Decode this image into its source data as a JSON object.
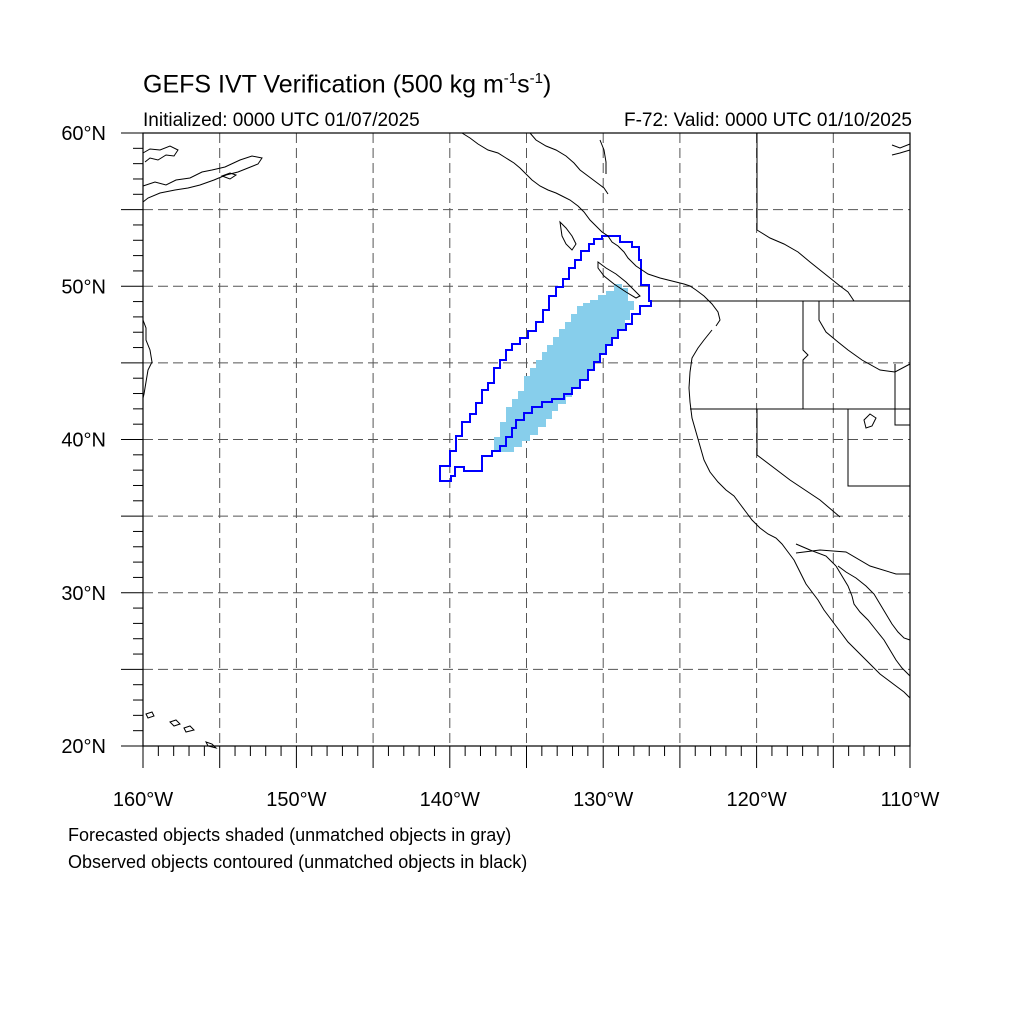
{
  "title": {
    "main": "GEFS IVT Verification (500 kg m",
    "sup1": "-1",
    "mid": "s",
    "sup2": "-1",
    "end": ")"
  },
  "initialized": "Initialized: 0000 UTC 01/07/2025",
  "valid": "F-72: Valid: 0000 UTC 01/10/2025",
  "footnotes": [
    "Forecasted objects shaded (unmatched objects in gray)",
    "Observed objects contoured (unmatched objects in black)"
  ],
  "map": {
    "lon_range": [
      -160,
      -110
    ],
    "lat_range": [
      20,
      60
    ],
    "lon_labels": [
      "160°W",
      "150°W",
      "140°W",
      "130°W",
      "120°W",
      "110°W"
    ],
    "lat_labels": [
      "20°N",
      "30°N",
      "40°N",
      "50°N",
      "60°N"
    ],
    "colors": {
      "forecast_fill": "#87ceeb",
      "observed_contour": "#0000ff",
      "coastline": "#000000",
      "grid": "#555555"
    }
  }
}
